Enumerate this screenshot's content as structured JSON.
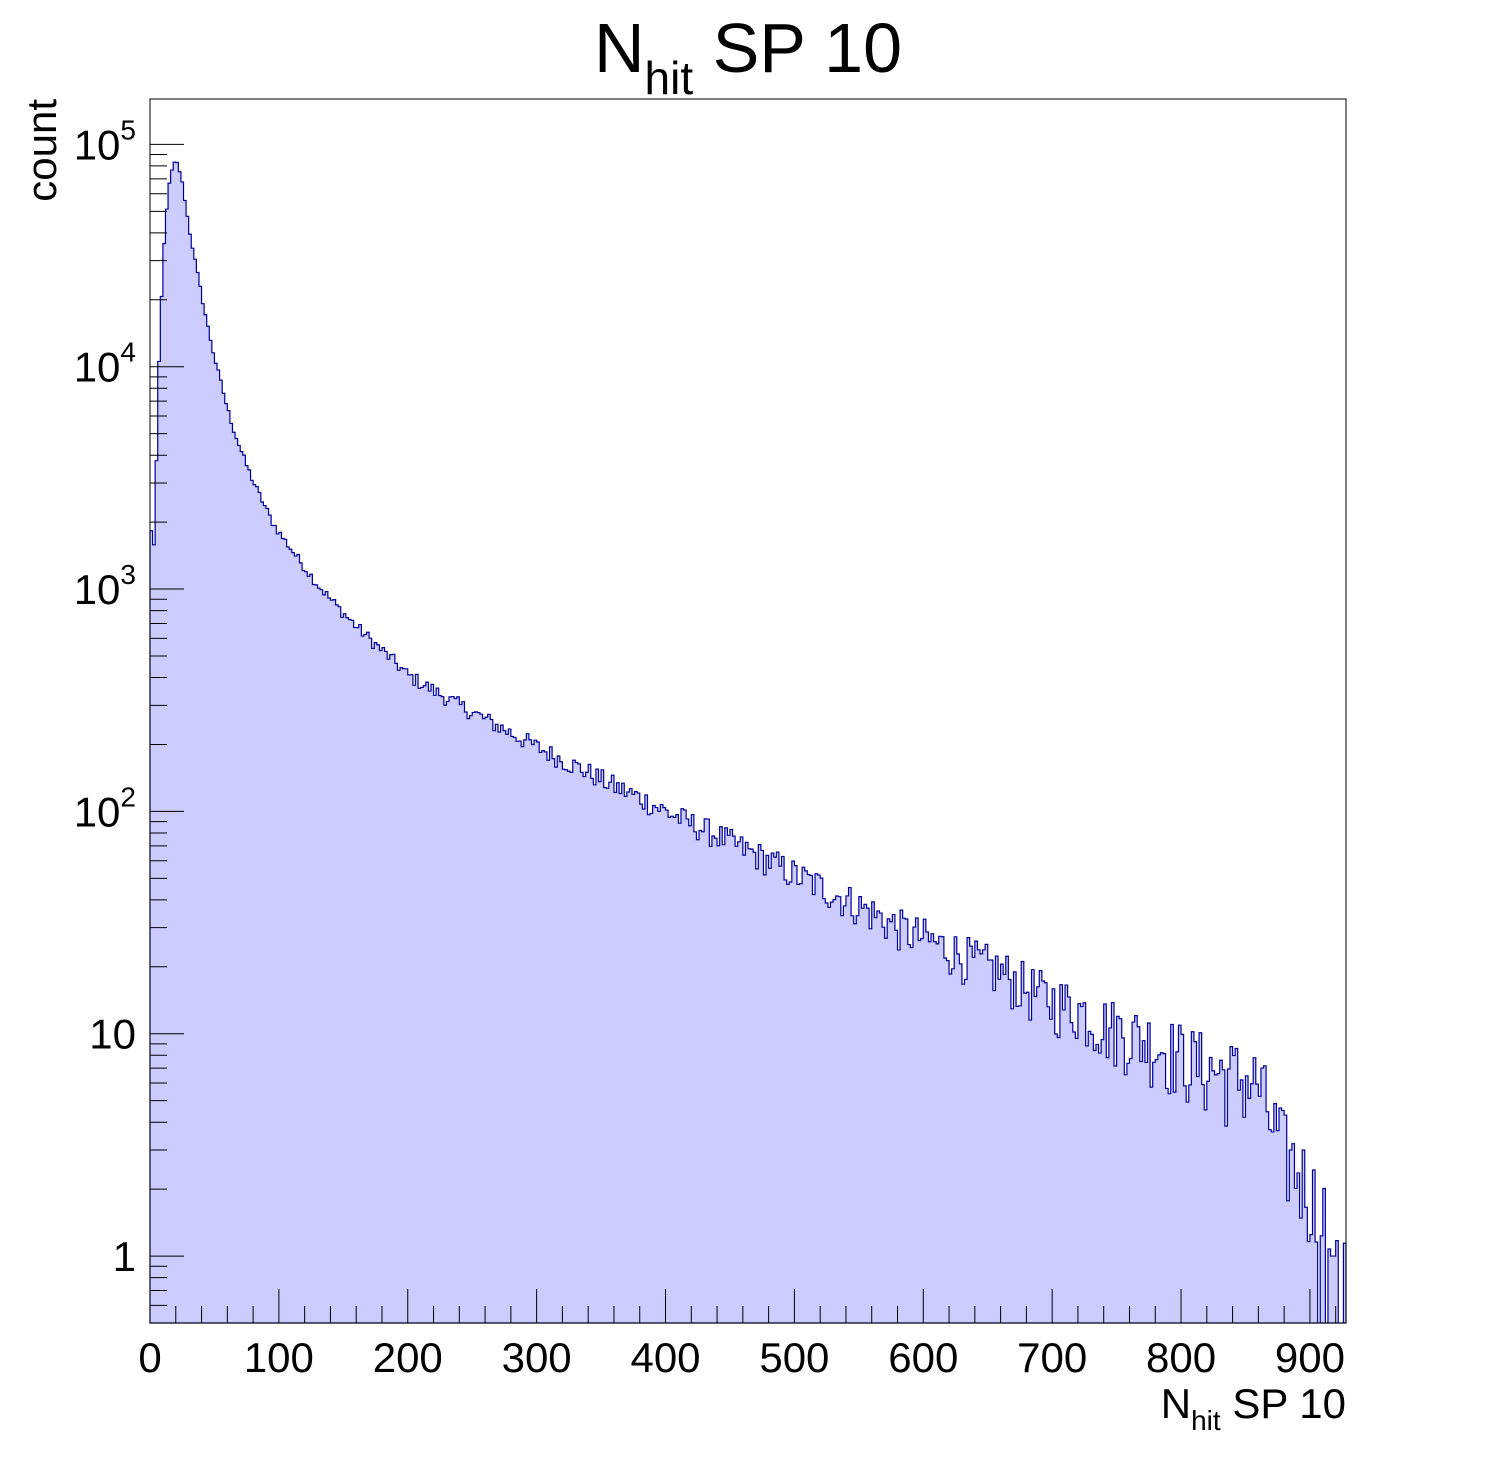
{
  "chart_data": {
    "type": "histogram",
    "title": {
      "main": "N",
      "sub": "hit",
      "rest": " SP 10"
    },
    "xlabel": {
      "main": "N",
      "sub": "hit",
      "rest": " SP 10"
    },
    "ylabel": "count",
    "xlim": [
      0,
      928
    ],
    "ylim": [
      0.5,
      160000
    ],
    "yscale": "log",
    "grid": false,
    "legend": "none",
    "fill_color": "#ccccff",
    "line_color": "#000099",
    "x_ticks": [
      {
        "value": 0,
        "label": "0"
      },
      {
        "value": 100,
        "label": "100"
      },
      {
        "value": 200,
        "label": "200"
      },
      {
        "value": 300,
        "label": "300"
      },
      {
        "value": 400,
        "label": "400"
      },
      {
        "value": 500,
        "label": "500"
      },
      {
        "value": 600,
        "label": "600"
      },
      {
        "value": 700,
        "label": "700"
      },
      {
        "value": 800,
        "label": "800"
      },
      {
        "value": 900,
        "label": "900"
      }
    ],
    "y_ticks": [
      {
        "value": 1,
        "base": "1",
        "exp": ""
      },
      {
        "value": 10,
        "base": "10",
        "exp": ""
      },
      {
        "value": 100,
        "base": "10",
        "exp": "2"
      },
      {
        "value": 1000,
        "base": "10",
        "exp": "3"
      },
      {
        "value": 10000,
        "base": "10",
        "exp": "4"
      },
      {
        "value": 100000,
        "base": "10",
        "exp": "5"
      }
    ],
    "bin_width": 2,
    "x": [
      0,
      2,
      4,
      6,
      8,
      10,
      12,
      14,
      16,
      18,
      20,
      22,
      24,
      26,
      28,
      30,
      35,
      40,
      45,
      50,
      55,
      60,
      65,
      70,
      75,
      80,
      85,
      90,
      95,
      100,
      110,
      120,
      130,
      140,
      150,
      160,
      170,
      180,
      190,
      200,
      220,
      240,
      260,
      280,
      300,
      320,
      340,
      360,
      380,
      400,
      420,
      440,
      460,
      480,
      500,
      520,
      540,
      560,
      580,
      600,
      620,
      640,
      660,
      680,
      700,
      720,
      740,
      760,
      780,
      800,
      820,
      840,
      860,
      870,
      880,
      890,
      900,
      910,
      920,
      926
    ],
    "values": [
      2500,
      1300,
      2000,
      7000,
      15000,
      28000,
      45000,
      60000,
      72000,
      80000,
      84000,
      80000,
      72000,
      62000,
      52000,
      43000,
      30000,
      21000,
      15000,
      11000,
      8500,
      6500,
      5200,
      4300,
      3600,
      3050,
      2650,
      2300,
      2000,
      1800,
      1500,
      1250,
      1050,
      900,
      780,
      680,
      600,
      530,
      470,
      410,
      350,
      300,
      260,
      225,
      195,
      170,
      150,
      130,
      115,
      100,
      88,
      78,
      68,
      60,
      52,
      46,
      40,
      35,
      30,
      27,
      24,
      21,
      19,
      16,
      14,
      13,
      11,
      10,
      9,
      8,
      7,
      6.5,
      6,
      4,
      3,
      2.5,
      2,
      1.5,
      1,
      0.8
    ]
  }
}
